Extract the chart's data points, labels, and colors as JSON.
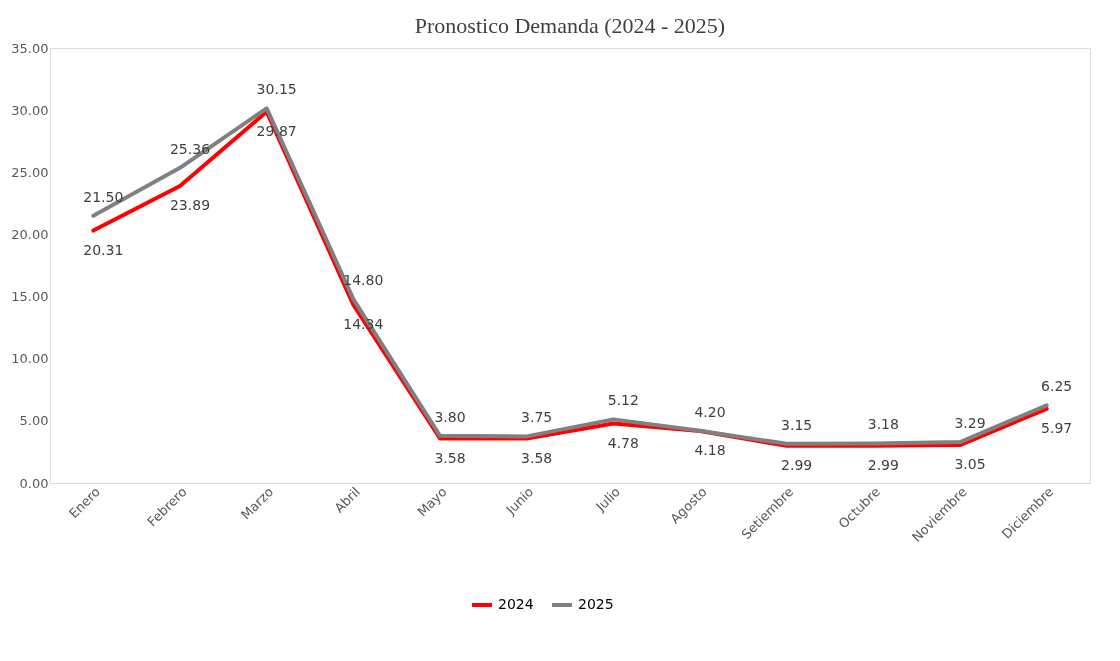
{
  "chart_data": {
    "type": "line",
    "title": "Pronostico Demanda (2024  - 2025)",
    "categories": [
      "Enero",
      "Febrero",
      "Marzo",
      "Abril",
      "Mayo",
      "Junio",
      "Julio",
      "Agosto",
      "Setiembre",
      "Octubre",
      "Noviembre",
      "Diciembre"
    ],
    "series": [
      {
        "name": "2024",
        "color": "#ff0000",
        "values": [
          20.31,
          23.89,
          29.87,
          14.34,
          3.58,
          3.58,
          4.78,
          4.18,
          2.99,
          2.99,
          3.05,
          5.97
        ],
        "value_labels": [
          "20.31",
          "23.89",
          "29.87",
          "14.34",
          "3.58",
          "3.58",
          "4.78",
          "4.18",
          "2.99",
          "2.99",
          "3.05",
          "5.97"
        ]
      },
      {
        "name": "2025",
        "color": "#808080",
        "values": [
          21.5,
          25.36,
          30.15,
          14.8,
          3.8,
          3.75,
          5.12,
          4.2,
          3.15,
          3.18,
          3.29,
          6.25
        ],
        "value_labels": [
          "21.50",
          "25.36",
          "30.15",
          "14.80",
          "3.80",
          "3.75",
          "5.12",
          "4.20",
          "3.15",
          "3.18",
          "3.29",
          "6.25"
        ]
      }
    ],
    "ylim": [
      0,
      35
    ],
    "yticks": [
      {
        "value": 0,
        "label": "0.00"
      },
      {
        "value": 5,
        "label": "5.00"
      },
      {
        "value": 10,
        "label": "10.00"
      },
      {
        "value": 15,
        "label": "15.00"
      },
      {
        "value": 20,
        "label": "20.00"
      },
      {
        "value": 25,
        "label": "25.00"
      },
      {
        "value": 30,
        "label": "30.00"
      },
      {
        "value": 35,
        "label": "35.00"
      }
    ],
    "grid": false,
    "legend": "bottom",
    "marker": "none",
    "line_style": "solid"
  }
}
